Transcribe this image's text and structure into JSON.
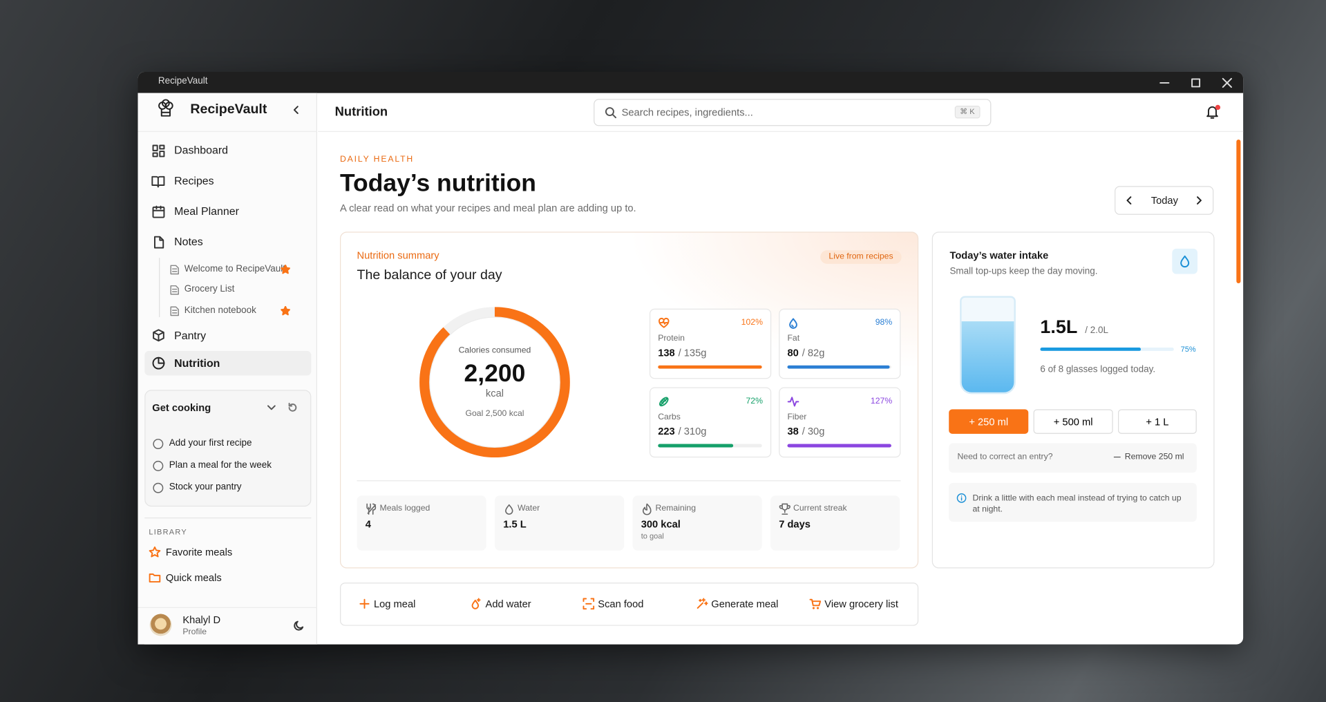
{
  "window": {
    "title": "RecipeVault"
  },
  "sidebar": {
    "brand": "RecipeVault",
    "nav": [
      "Dashboard",
      "Recipes",
      "Meal Planner",
      "Notes"
    ],
    "notes": [
      "Welcome to RecipeVault",
      "Grocery List",
      "Kitchen notebook"
    ],
    "nav2": [
      "Pantry",
      "Nutrition"
    ],
    "get_cooking": {
      "title": "Get cooking",
      "tasks": [
        "Add your first recipe",
        "Plan a meal for the week",
        "Stock your pantry"
      ]
    },
    "library": {
      "heading": "LIBRARY",
      "items": [
        "Favorite meals",
        "Quick meals"
      ]
    },
    "user": {
      "name": "Khalyl D",
      "role": "Profile"
    }
  },
  "header": {
    "title": "Nutrition",
    "search_placeholder": "Search recipes, ingredients...",
    "shortcut": "⌘ K"
  },
  "page": {
    "eyebrow": "DAILY HEALTH",
    "title": "Today’s nutrition",
    "subtitle": "A clear read on what your recipes and meal plan are adding up to.",
    "date": "Today"
  },
  "summary": {
    "eyebrow": "Nutrition summary",
    "title": "The balance of your day",
    "badge": "Live from recipes",
    "calories": {
      "caption": "Calories consumed",
      "amount": {
        "value": 2200,
        "label": "2,200"
      },
      "unit": "kcal",
      "goal": {
        "value": 2500,
        "label": "Goal 2,500 kcal"
      }
    },
    "macros": [
      {
        "name": "Protein",
        "percent": {
          "value": 102,
          "label": "102%"
        },
        "amount": "138",
        "target": "/ 135g"
      },
      {
        "name": "Fat",
        "percent": {
          "value": 98,
          "label": "98%"
        },
        "amount": "80",
        "target": "/ 82g"
      },
      {
        "name": "Carbs",
        "percent": {
          "value": 72,
          "label": "72%"
        },
        "amount": "223",
        "target": "/ 310g"
      },
      {
        "name": "Fiber",
        "percent": {
          "value": 127,
          "label": "127%"
        },
        "amount": "38",
        "target": "/ 30g"
      }
    ],
    "stats": [
      {
        "label": "Meals logged",
        "value": "4"
      },
      {
        "label": "Water",
        "value": "1.5 L"
      },
      {
        "label": "Remaining",
        "value": "300 kcal",
        "note": "to goal"
      },
      {
        "label": "Current streak",
        "value": "7 days"
      }
    ]
  },
  "water": {
    "title": "Today’s water intake",
    "subtitle": "Small top-ups keep the day moving.",
    "amount": "1.5L",
    "goal": "/ 2.0L",
    "percent": {
      "value": 75,
      "label": "75%"
    },
    "note": "6 of 8 glasses logged today.",
    "buttons": [
      "+ 250 ml",
      "+ 500 ml",
      "+ 1 L"
    ],
    "correct": "Need to correct an entry?",
    "remove": "Remove 250 ml",
    "tip": "Drink a little with each meal instead of trying to catch up at night."
  },
  "actions": [
    "Log meal",
    "Add water",
    "Scan food",
    "Generate meal",
    "View grocery list"
  ]
}
